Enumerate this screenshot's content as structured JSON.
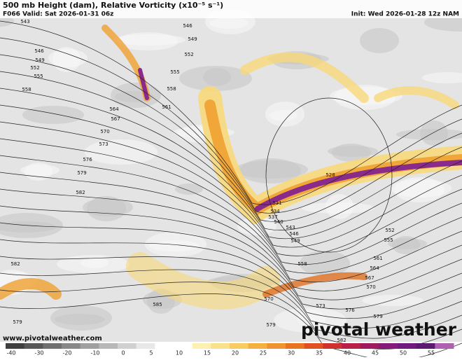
{
  "header": {
    "title": "500 mb Height (dam), Relative Vorticity (x10⁻⁵ s⁻¹)",
    "valid": "F066 Valid: Sat 2026-01-31 06z",
    "init": "Init: Wed 2026-01-28 12z NAM"
  },
  "footer": {
    "website": "www.pivotalweather.com",
    "logo": "pivotal weather"
  },
  "colorbar": {
    "labels": [
      -40,
      -30,
      -20,
      -10,
      0,
      5,
      10,
      15,
      20,
      25,
      30,
      35,
      40,
      45,
      50,
      55
    ]
  },
  "contour_labels": [
    543,
    546,
    549,
    552,
    555,
    558,
    546,
    549,
    552,
    555,
    558,
    561,
    564,
    567,
    570,
    573,
    576,
    579,
    582,
    582,
    579,
    585,
    528,
    531,
    534,
    537,
    540,
    543,
    546,
    549,
    558,
    552,
    555,
    561,
    564,
    567,
    570,
    570,
    573,
    576,
    579,
    579,
    582
  ]
}
